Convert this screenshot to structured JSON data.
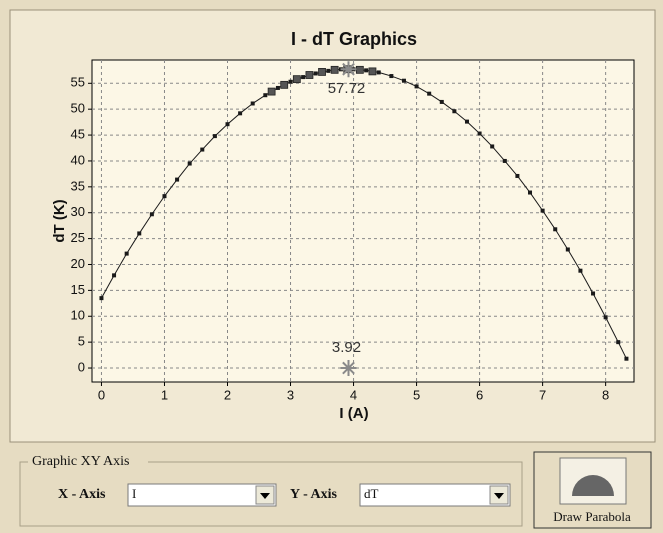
{
  "chart_data": {
    "type": "line",
    "title": "I - dT Graphics",
    "x_label": "I  (A)",
    "y_label": "dT  (K)",
    "xlim": [
      -0.15,
      8.45
    ],
    "ylim": [
      -2.7,
      59.5
    ],
    "xticks": [
      0,
      1,
      2,
      3,
      4,
      5,
      6,
      7,
      8
    ],
    "yticks": [
      0,
      5,
      10,
      15,
      20,
      25,
      30,
      35,
      40,
      45,
      50,
      55
    ],
    "grid": true,
    "series": [
      {
        "color": "#1a1a1a",
        "x": [
          0,
          0.2,
          0.4,
          0.6,
          0.8,
          1.0,
          1.2,
          1.4,
          1.6,
          1.8,
          2.0,
          2.2,
          2.4,
          2.6,
          2.8,
          3.0,
          3.2,
          3.4,
          3.6,
          3.8,
          4.0,
          4.2,
          4.4,
          4.6,
          4.8,
          5.0,
          5.2,
          5.4,
          5.6,
          5.8,
          6.0,
          6.2,
          6.4,
          6.6,
          6.8,
          7.0,
          7.2,
          7.4,
          7.6,
          7.8,
          8.0,
          8.2,
          8.33
        ],
        "values": [
          13.5,
          17.9,
          22.1,
          26.0,
          29.7,
          33.2,
          36.4,
          39.5,
          42.2,
          44.8,
          47.1,
          49.2,
          51.1,
          52.7,
          54.1,
          55.3,
          56.2,
          56.9,
          57.4,
          57.7,
          57.7,
          57.5,
          57.1,
          56.4,
          55.5,
          54.4,
          53.0,
          51.4,
          49.6,
          47.6,
          45.3,
          42.8,
          40.0,
          37.1,
          33.9,
          30.4,
          26.8,
          22.9,
          18.8,
          14.4,
          9.8,
          5.0,
          1.8
        ]
      },
      {
        "color": "#555555",
        "x": [
          2.7,
          2.9,
          3.1,
          3.3,
          3.5,
          3.7,
          3.9,
          4.1,
          4.3
        ],
        "values": [
          53.4,
          54.7,
          55.8,
          56.6,
          57.2,
          57.6,
          57.72,
          57.6,
          57.3
        ]
      }
    ],
    "annotations": [
      {
        "x": 3.92,
        "y": 57.72,
        "label": "57.72"
      },
      {
        "x": 3.92,
        "y": 0,
        "label": "3.92"
      }
    ]
  },
  "controls": {
    "group_title": "Graphic XY Axis",
    "x_axis_label": "X - Axis",
    "x_axis_value": "I",
    "y_axis_label": "Y - Axis",
    "y_axis_value": "dT",
    "button": "Draw Parabola"
  }
}
